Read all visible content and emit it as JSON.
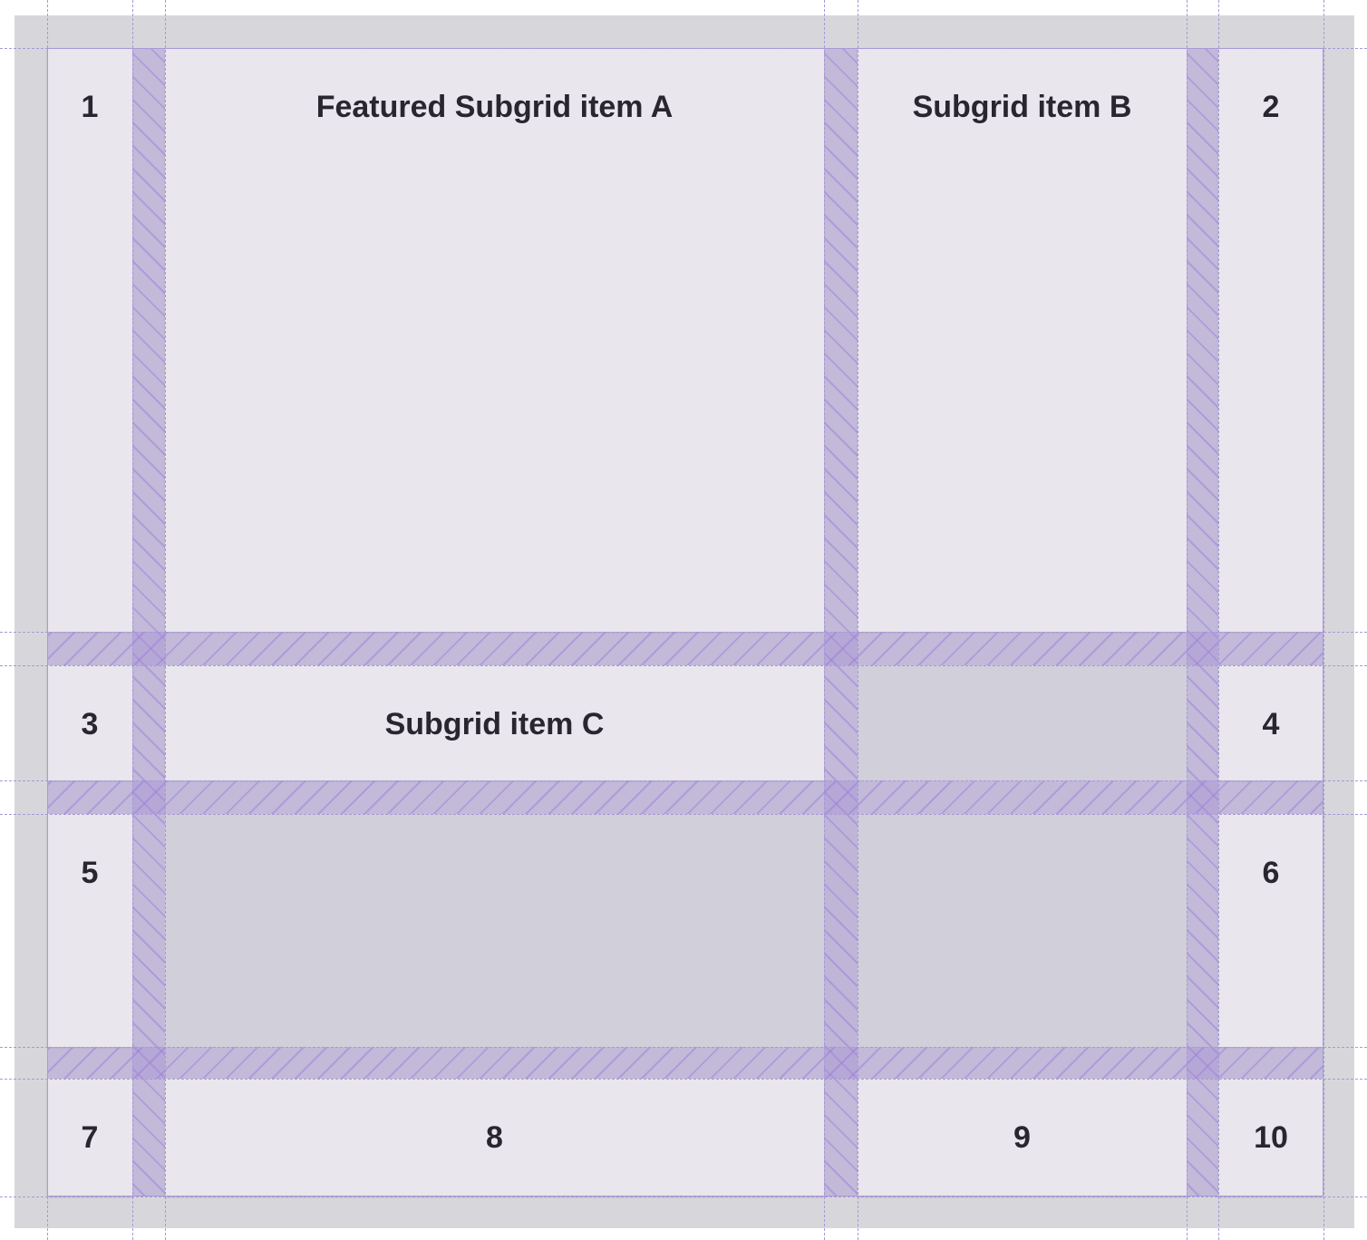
{
  "cells": {
    "c1": "1",
    "a": "Featured Subgrid item A",
    "b": "Subgrid item B",
    "c2": "2",
    "c3": "3",
    "c": "Subgrid item C",
    "c4": "4",
    "c5": "5",
    "c6": "6",
    "c7": "7",
    "c8": "8",
    "c9": "9",
    "c10": "10"
  },
  "colors": {
    "item": "#e9e6ed",
    "empty": "#d1cfda",
    "gap": "#b9aed8",
    "grid_line": "#a898d8",
    "background": "#d7d7db"
  }
}
